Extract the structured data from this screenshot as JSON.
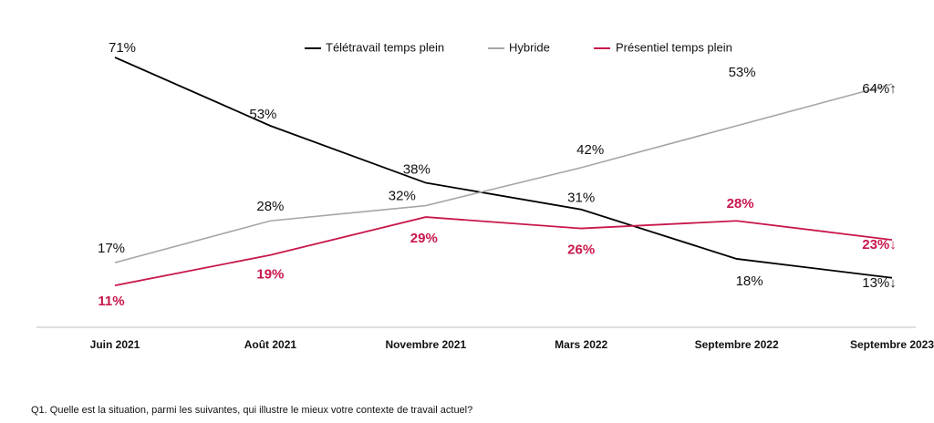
{
  "chart_data": {
    "type": "line",
    "title": "",
    "xlabel": "",
    "ylabel": "",
    "ylim": [
      0,
      80
    ],
    "grid": false,
    "legend_position": "top-right",
    "categories": [
      "Juin 2021",
      "Août 2021",
      "Novembre 2021",
      "Mars 2022",
      "Septembre 2022",
      "Septembre 2023"
    ],
    "series": [
      {
        "name": "Télétravail temps plein",
        "color": "#000000",
        "values": [
          71,
          53,
          38,
          31,
          18,
          13
        ],
        "labels": [
          "71%",
          "53%",
          "38%",
          "31%",
          "18%",
          "13%↓"
        ]
      },
      {
        "name": "Hybride",
        "color": "#a6a6a6",
        "values": [
          17,
          28,
          32,
          42,
          53,
          64
        ],
        "labels": [
          "17%",
          "28%",
          "32%",
          "42%",
          "53%",
          "64%↑"
        ]
      },
      {
        "name": "Présentiel temps plein",
        "color": "#c8174b",
        "values": [
          11,
          19,
          29,
          26,
          28,
          23
        ],
        "labels": [
          "11%",
          "19%",
          "29%",
          "26%",
          "28%",
          "23%↓"
        ]
      }
    ]
  },
  "footnote": "Q1. Quelle est la situation, parmi les suivantes, qui illustre le mieux votre contexte de travail actuel?"
}
